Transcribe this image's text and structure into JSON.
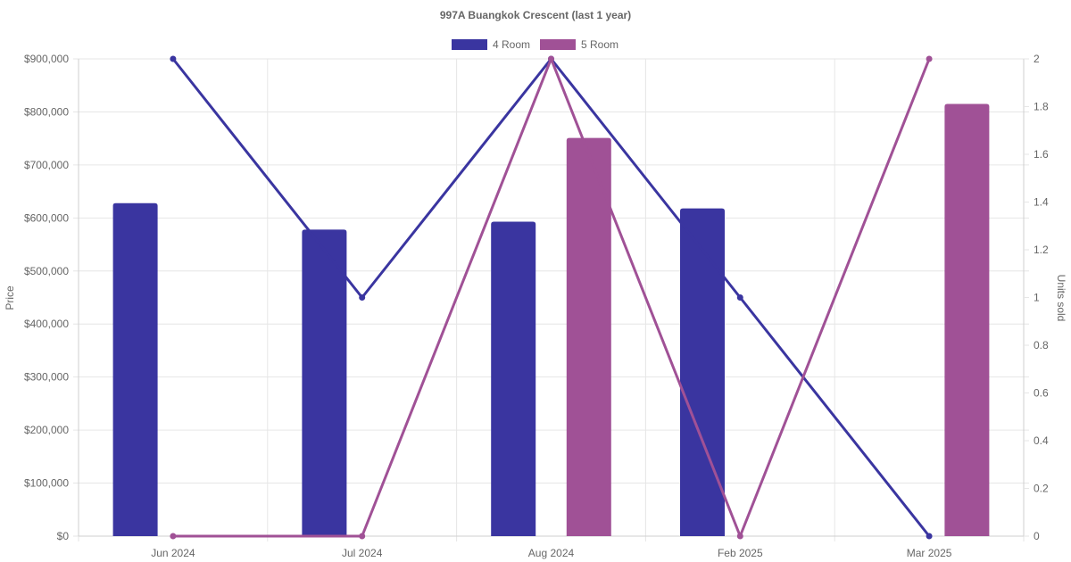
{
  "chart_data": {
    "type": "bar",
    "title": "997A Buangkok Crescent (last 1 year)",
    "categories": [
      "Jun 2024",
      "Jul 2024",
      "Aug 2024",
      "Feb 2025",
      "Mar 2025"
    ],
    "legend": [
      "4 Room",
      "5 Room"
    ],
    "legend_position": "top",
    "grid": true,
    "y_left": {
      "label": "Price",
      "ylim": [
        0,
        900000
      ],
      "ticks": [
        "$0",
        "$100,000",
        "$200,000",
        "$300,000",
        "$400,000",
        "$500,000",
        "$600,000",
        "$700,000",
        "$800,000",
        "$900,000"
      ]
    },
    "y_right": {
      "label": "Units sold",
      "ylim": [
        0,
        2
      ],
      "ticks": [
        "0",
        "0.2",
        "0.4",
        "0.6",
        "0.8",
        "1",
        "1.2",
        "1.4",
        "1.6",
        "1.8",
        "2"
      ]
    },
    "bar_series": [
      {
        "name": "4 Room",
        "color": "#3a35a0",
        "values": [
          628000,
          578000,
          593000,
          618000,
          null
        ]
      },
      {
        "name": "5 Room",
        "color": "#a05196",
        "values": [
          null,
          null,
          751000,
          null,
          815000
        ]
      }
    ],
    "line_series": [
      {
        "name": "4 Room",
        "color": "#3a35a0",
        "axis": "right",
        "values": [
          2,
          1,
          2,
          1,
          0
        ]
      },
      {
        "name": "5 Room",
        "color": "#a05196",
        "axis": "right",
        "values": [
          0,
          0,
          2,
          0,
          2
        ]
      }
    ]
  }
}
